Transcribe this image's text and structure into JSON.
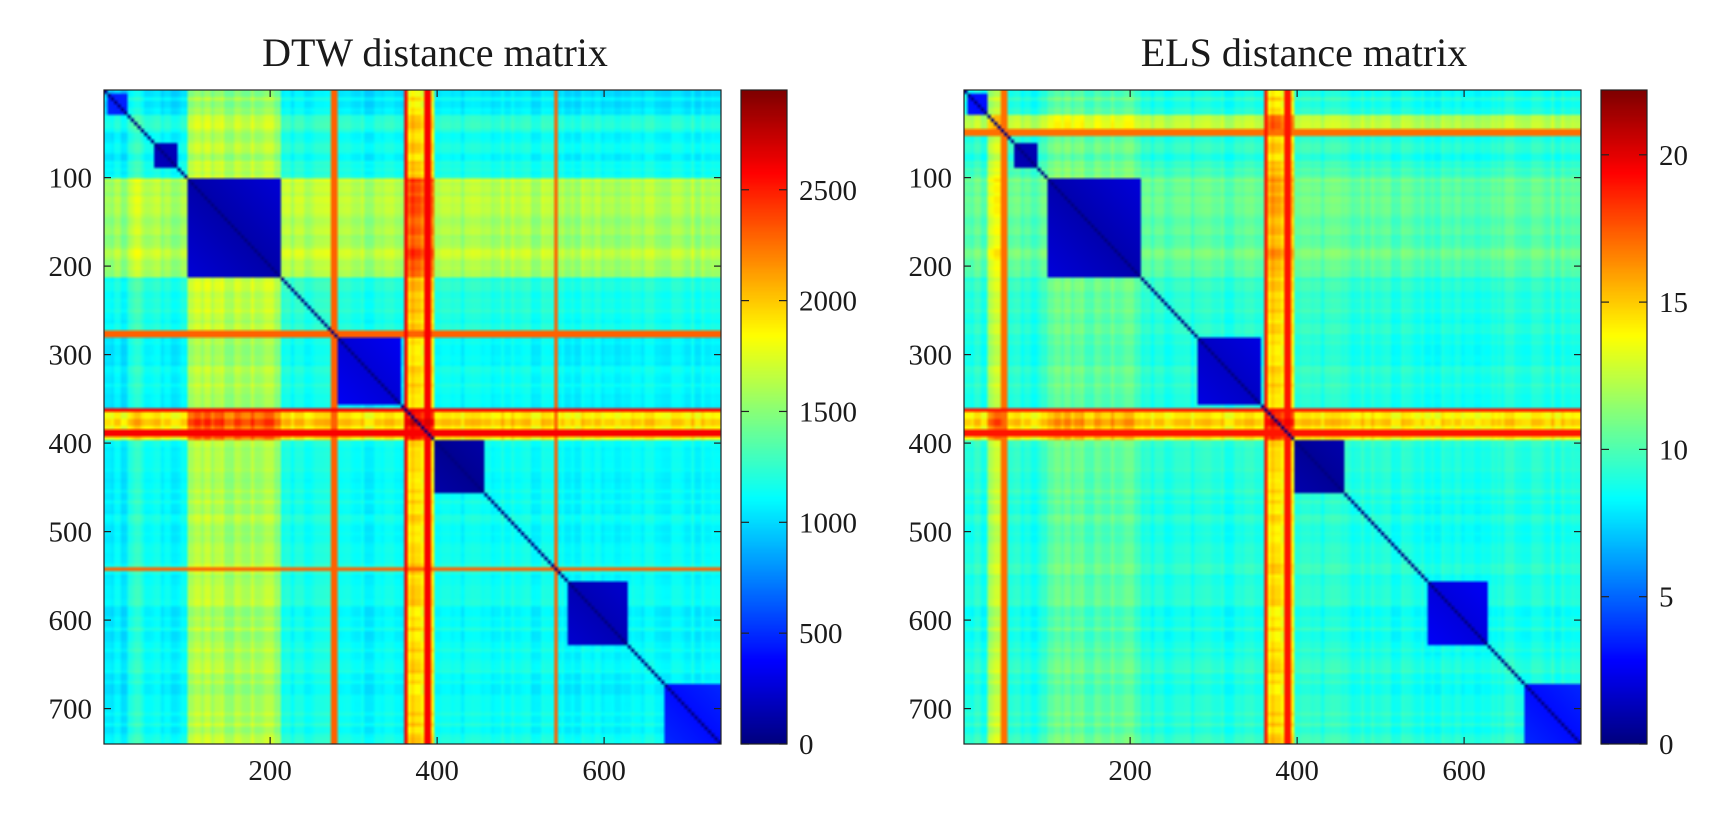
{
  "chart_data": [
    {
      "type": "heatmap",
      "title": "DTW distance matrix",
      "xlabel": "",
      "ylabel": "",
      "matrix_size": 740,
      "xlim": [
        1,
        740
      ],
      "ylim": [
        1,
        740
      ],
      "x_ticks": [
        200,
        400,
        600
      ],
      "y_ticks": [
        100,
        200,
        300,
        400,
        500,
        600,
        700
      ],
      "colormap": "jet",
      "clim": [
        0,
        2950
      ],
      "colorbar_ticks": [
        0,
        500,
        1000,
        1500,
        2000,
        2500
      ],
      "baseline_value": 1150,
      "block_values": {
        "b0_25": 1000,
        "b25_45": 1300,
        "b45_85": 1100,
        "b85_100": 1150,
        "b100_210": 2000,
        "b210_275": 1200,
        "b275_360": 1100,
        "b360_395": 2600,
        "b395_460": 1150,
        "b460_550": 1150,
        "b550_640": 1100,
        "b640_740": 1100
      },
      "diagonal_blocks": [
        {
          "start": 1,
          "end": 25,
          "value": 450
        },
        {
          "start": 60,
          "end": 85,
          "value": 150
        },
        {
          "start": 100,
          "end": 210,
          "value": 120
        },
        {
          "start": 280,
          "end": 355,
          "value": 250
        },
        {
          "start": 395,
          "end": 455,
          "value": 50
        },
        {
          "start": 555,
          "end": 625,
          "value": 150
        },
        {
          "start": 670,
          "end": 740,
          "value": 400
        }
      ],
      "highlight_lines": [
        {
          "index": 360,
          "value": 2600
        },
        {
          "index": 385,
          "value": 2600
        },
        {
          "index": 275,
          "value": 2300
        },
        {
          "index": 540,
          "value": 2300
        }
      ]
    },
    {
      "type": "heatmap",
      "title": "ELS distance matrix",
      "xlabel": "",
      "ylabel": "",
      "matrix_size": 740,
      "xlim": [
        1,
        740
      ],
      "ylim": [
        1,
        740
      ],
      "x_ticks": [
        200,
        400,
        600
      ],
      "y_ticks": [
        100,
        200,
        300,
        400,
        500,
        600,
        700
      ],
      "colormap": "jet",
      "clim": [
        0,
        22.2
      ],
      "colorbar_ticks": [
        0,
        5,
        10,
        15,
        20
      ],
      "baseline_value": 9,
      "block_values": {
        "b0_25": 9,
        "b25_45": 15,
        "b45_85": 9,
        "b85_100": 10,
        "b100_210": 11.5,
        "b210_275": 9,
        "b275_360": 9,
        "b360_395": 19,
        "b395_460": 9.5,
        "b460_550": 9,
        "b550_640": 8.5,
        "b640_740": 9
      },
      "diagonal_blocks": [
        {
          "start": 1,
          "end": 25,
          "value": 3
        },
        {
          "start": 60,
          "end": 85,
          "value": 1
        },
        {
          "start": 100,
          "end": 210,
          "value": 1
        },
        {
          "start": 280,
          "end": 355,
          "value": 1.5
        },
        {
          "start": 395,
          "end": 455,
          "value": 0.5
        },
        {
          "start": 555,
          "end": 625,
          "value": 2
        },
        {
          "start": 670,
          "end": 740,
          "value": 3
        }
      ],
      "highlight_lines": [
        {
          "index": 360,
          "value": 19
        },
        {
          "index": 385,
          "value": 19
        },
        {
          "index": 45,
          "value": 17
        }
      ]
    }
  ]
}
